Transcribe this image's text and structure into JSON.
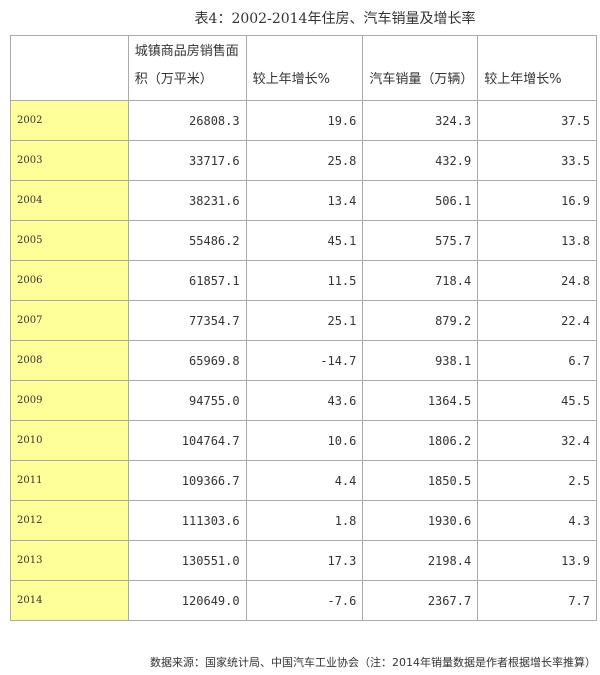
{
  "title": "表4：2002-2014年住房、汽车销量及增长率",
  "headers": [
    "",
    "城镇商品房销售面积（万平米）",
    "较上年增长%",
    "汽车销量（万辆）",
    "较上年增长%"
  ],
  "rows": [
    [
      "2002",
      "26808.3",
      "19.6",
      "324.3",
      "37.5"
    ],
    [
      "2003",
      "33717.6",
      "25.8",
      "432.9",
      "33.5"
    ],
    [
      "2004",
      "38231.6",
      "13.4",
      "506.1",
      "16.9"
    ],
    [
      "2005",
      "55486.2",
      "45.1",
      "575.7",
      "13.8"
    ],
    [
      "2006",
      "61857.1",
      "11.5",
      "718.4",
      "24.8"
    ],
    [
      "2007",
      "77354.7",
      "25.1",
      "879.2",
      "22.4"
    ],
    [
      "2008",
      "65969.8",
      "-14.7",
      "938.1",
      "6.7"
    ],
    [
      "2009",
      "94755.0",
      "43.6",
      "1364.5",
      "45.5"
    ],
    [
      "2010",
      "104764.7",
      "10.6",
      "1806.2",
      "32.4"
    ],
    [
      "2011",
      "109366.7",
      "4.4",
      "1850.5",
      "2.5"
    ],
    [
      "2012",
      "111303.6",
      "1.8",
      "1930.6",
      "4.3"
    ],
    [
      "2013",
      "130551.0",
      "17.3",
      "2198.4",
      "13.9"
    ],
    [
      "2014",
      "120649.0",
      "-7.6",
      "2367.7",
      "7.7"
    ]
  ],
  "footnote": "数据来源：国家统计局、中国汽车工业协会（注：2014年销量数据是作者根据增长率推算）",
  "colors": {
    "year_highlight": "#ffff99"
  }
}
